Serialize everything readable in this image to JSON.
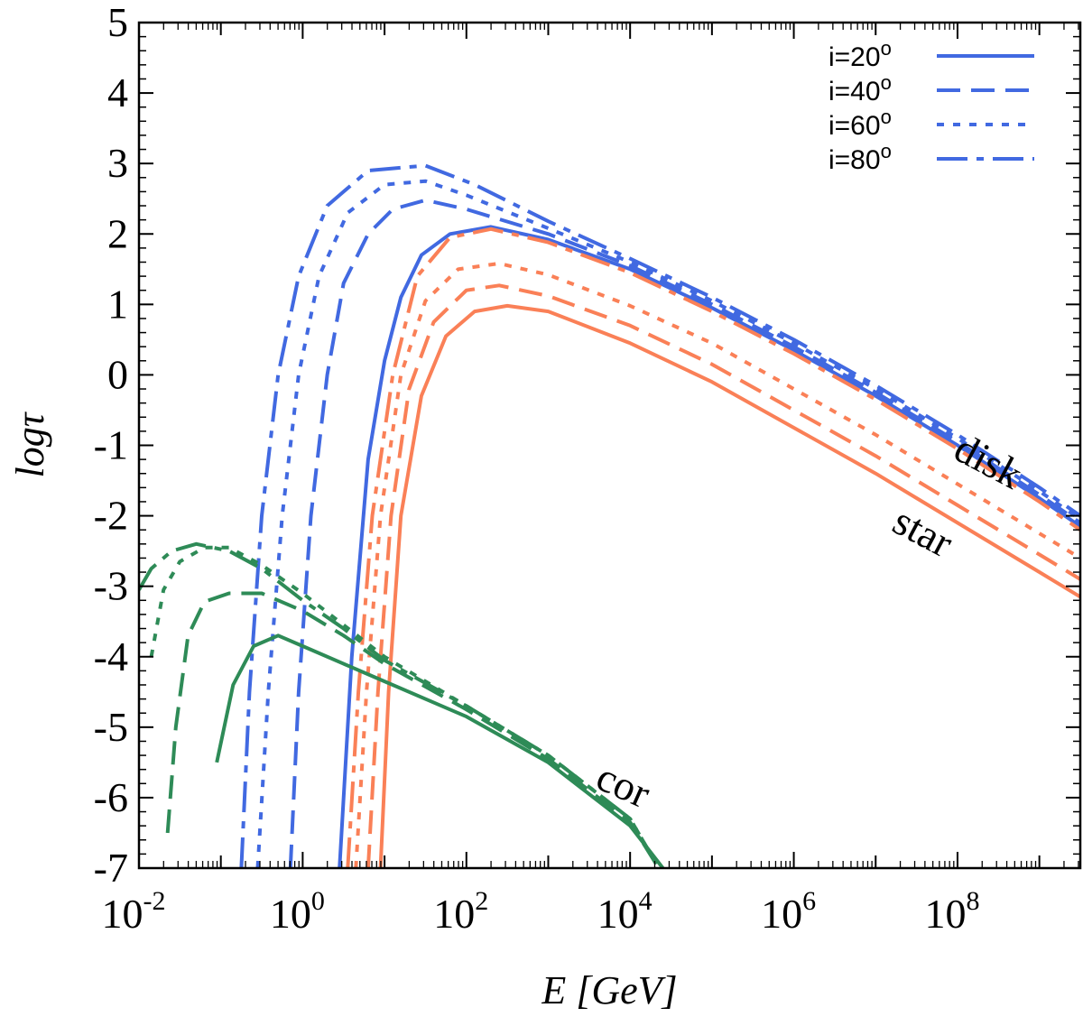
{
  "chart_data": {
    "type": "line",
    "title": "",
    "xlabel": "E [GeV]",
    "ylabel": "logτ",
    "xscale": "log10",
    "xlim_log10": [
      -2,
      9.5
    ],
    "ylim": [
      -7,
      5
    ],
    "x_ticks": [
      {
        "base": "10",
        "exp": "-2",
        "value_log10": -2
      },
      {
        "base": "10",
        "exp": "0",
        "value_log10": 0
      },
      {
        "base": "10",
        "exp": "2",
        "value_log10": 2
      },
      {
        "base": "10",
        "exp": "4",
        "value_log10": 4
      },
      {
        "base": "10",
        "exp": "6",
        "value_log10": 6
      },
      {
        "base": "10",
        "exp": "8",
        "value_log10": 8
      }
    ],
    "y_ticks": [
      "-7",
      "-6",
      "-5",
      "-4",
      "-3",
      "-2",
      "-1",
      "0",
      "1",
      "2",
      "3",
      "4",
      "5"
    ],
    "legend_position": "top-right",
    "legend": [
      {
        "label": "i=20",
        "sup": "o",
        "dash": "solid"
      },
      {
        "label": "i=40",
        "sup": "o",
        "dash": "dashed"
      },
      {
        "label": "i=60",
        "sup": "o",
        "dash": "dotted"
      },
      {
        "label": "i=80",
        "sup": "o",
        "dash": "dash-dot"
      }
    ],
    "legend_color": "#4169e1",
    "colors": {
      "disk": "#4169e1",
      "star": "#fa8057",
      "cor": "#2e8b57"
    },
    "annotations": [
      {
        "text": "disk",
        "x_log10": 8.3,
        "y": -1.4,
        "rotate": 28
      },
      {
        "text": "star",
        "x_log10": 7.5,
        "y": -2.4,
        "rotate": 28
      },
      {
        "text": "cor",
        "x_log10": 3.85,
        "y": -6.0,
        "rotate": 24
      }
    ],
    "series": [
      {
        "name": "disk i=20",
        "group": "disk",
        "dash": "solid",
        "points": [
          [
            0.45,
            -7
          ],
          [
            0.6,
            -4
          ],
          [
            0.8,
            -1.2
          ],
          [
            1.0,
            0.2
          ],
          [
            1.2,
            1.1
          ],
          [
            1.45,
            1.7
          ],
          [
            1.8,
            2.0
          ],
          [
            2.3,
            2.1
          ],
          [
            3,
            1.92
          ],
          [
            4,
            1.5
          ],
          [
            5,
            0.95
          ],
          [
            6,
            0.35
          ],
          [
            7,
            -0.3
          ],
          [
            8,
            -1
          ],
          [
            9,
            -1.75
          ],
          [
            9.5,
            -2.15
          ]
        ]
      },
      {
        "name": "disk i=40",
        "group": "disk",
        "dash": "dashed",
        "points": [
          [
            -0.15,
            -7
          ],
          [
            -0.05,
            -4.5
          ],
          [
            0.1,
            -2
          ],
          [
            0.3,
            0
          ],
          [
            0.5,
            1.3
          ],
          [
            0.8,
            2.0
          ],
          [
            1.1,
            2.35
          ],
          [
            1.5,
            2.48
          ],
          [
            2,
            2.35
          ],
          [
            3,
            2.0
          ],
          [
            4,
            1.55
          ],
          [
            5,
            1.0
          ],
          [
            6,
            0.4
          ],
          [
            7,
            -0.25
          ],
          [
            8,
            -0.95
          ],
          [
            9,
            -1.7
          ],
          [
            9.5,
            -2.1
          ]
        ]
      },
      {
        "name": "disk i=60",
        "group": "disk",
        "dash": "dotted",
        "points": [
          [
            -0.55,
            -7
          ],
          [
            -0.42,
            -4.5
          ],
          [
            -0.25,
            -2
          ],
          [
            -0.05,
            0
          ],
          [
            0.2,
            1.4
          ],
          [
            0.55,
            2.3
          ],
          [
            1,
            2.7
          ],
          [
            1.5,
            2.75
          ],
          [
            2,
            2.55
          ],
          [
            3,
            2.08
          ],
          [
            4,
            1.6
          ],
          [
            5,
            1.05
          ],
          [
            6,
            0.45
          ],
          [
            7,
            -0.2
          ],
          [
            8,
            -0.9
          ],
          [
            9,
            -1.65
          ],
          [
            9.5,
            -2.05
          ]
        ]
      },
      {
        "name": "disk i=80",
        "group": "disk",
        "dash": "dash-dot",
        "points": [
          [
            -0.75,
            -7
          ],
          [
            -0.65,
            -4.5
          ],
          [
            -0.5,
            -2
          ],
          [
            -0.3,
            0
          ],
          [
            -0.05,
            1.4
          ],
          [
            0.3,
            2.4
          ],
          [
            0.8,
            2.9
          ],
          [
            1.5,
            2.97
          ],
          [
            2.1,
            2.7
          ],
          [
            3,
            2.18
          ],
          [
            4,
            1.65
          ],
          [
            5,
            1.1
          ],
          [
            6,
            0.5
          ],
          [
            7,
            -0.15
          ],
          [
            8,
            -0.85
          ],
          [
            9,
            -1.6
          ],
          [
            9.5,
            -2.0
          ]
        ]
      },
      {
        "name": "star i=20",
        "group": "star",
        "dash": "solid",
        "points": [
          [
            0.95,
            -7
          ],
          [
            1.05,
            -4.5
          ],
          [
            1.2,
            -2
          ],
          [
            1.45,
            -0.3
          ],
          [
            1.75,
            0.55
          ],
          [
            2.1,
            0.9
          ],
          [
            2.5,
            0.98
          ],
          [
            3,
            0.9
          ],
          [
            4,
            0.45
          ],
          [
            5,
            -0.1
          ],
          [
            6,
            -0.75
          ],
          [
            7,
            -1.4
          ],
          [
            8,
            -2.1
          ],
          [
            9,
            -2.8
          ],
          [
            9.5,
            -3.15
          ]
        ]
      },
      {
        "name": "star i=40",
        "group": "star",
        "dash": "dashed",
        "points": [
          [
            0.8,
            -7
          ],
          [
            0.92,
            -4.5
          ],
          [
            1.08,
            -2
          ],
          [
            1.3,
            -0.2
          ],
          [
            1.6,
            0.75
          ],
          [
            2,
            1.2
          ],
          [
            2.4,
            1.27
          ],
          [
            3,
            1.12
          ],
          [
            4,
            0.7
          ],
          [
            5,
            0.15
          ],
          [
            6,
            -0.5
          ],
          [
            7,
            -1.15
          ],
          [
            8,
            -1.85
          ],
          [
            9,
            -2.55
          ],
          [
            9.5,
            -2.9
          ]
        ]
      },
      {
        "name": "star i=60",
        "group": "star",
        "dash": "dotted",
        "points": [
          [
            0.65,
            -7
          ],
          [
            0.78,
            -4.5
          ],
          [
            0.95,
            -2
          ],
          [
            1.2,
            0
          ],
          [
            1.5,
            1.05
          ],
          [
            1.9,
            1.5
          ],
          [
            2.4,
            1.58
          ],
          [
            3,
            1.42
          ],
          [
            4,
            0.98
          ],
          [
            5,
            0.45
          ],
          [
            6,
            -0.2
          ],
          [
            7,
            -0.85
          ],
          [
            8,
            -1.55
          ],
          [
            9,
            -2.25
          ],
          [
            9.5,
            -2.6
          ]
        ]
      },
      {
        "name": "star i=80",
        "group": "star",
        "dash": "dash-dot",
        "points": [
          [
            0.55,
            -7
          ],
          [
            0.68,
            -4.5
          ],
          [
            0.85,
            -2
          ],
          [
            1.1,
            0
          ],
          [
            1.4,
            1.4
          ],
          [
            1.8,
            1.95
          ],
          [
            2.3,
            2.07
          ],
          [
            3,
            1.88
          ],
          [
            4,
            1.45
          ],
          [
            5,
            0.9
          ],
          [
            6,
            0.3
          ],
          [
            7,
            -0.35
          ],
          [
            8,
            -1.05
          ],
          [
            9,
            -1.8
          ],
          [
            9.5,
            -2.2
          ]
        ]
      },
      {
        "name": "cor i=20",
        "group": "cor",
        "dash": "solid",
        "points": [
          [
            -1.05,
            -5.5
          ],
          [
            -0.85,
            -4.4
          ],
          [
            -0.6,
            -3.85
          ],
          [
            -0.3,
            -3.7
          ],
          [
            0,
            -3.85
          ],
          [
            0.5,
            -4.1
          ],
          [
            1,
            -4.35
          ],
          [
            2,
            -4.85
          ],
          [
            3,
            -5.5
          ],
          [
            4,
            -6.4
          ],
          [
            4.4,
            -7
          ]
        ]
      },
      {
        "name": "cor i=40",
        "group": "cor",
        "dash": "dashed",
        "points": [
          [
            -1.65,
            -6.5
          ],
          [
            -1.55,
            -5
          ],
          [
            -1.4,
            -3.7
          ],
          [
            -1.2,
            -3.22
          ],
          [
            -0.9,
            -3.1
          ],
          [
            -0.5,
            -3.1
          ],
          [
            0,
            -3.35
          ],
          [
            0.5,
            -3.7
          ],
          [
            1,
            -4.1
          ],
          [
            2,
            -4.75
          ],
          [
            3,
            -5.45
          ],
          [
            4,
            -6.35
          ],
          [
            4.35,
            -7
          ]
        ]
      },
      {
        "name": "cor i=60",
        "group": "cor",
        "dash": "dotted",
        "points": [
          [
            -1.85,
            -4.0
          ],
          [
            -1.7,
            -3.05
          ],
          [
            -1.5,
            -2.65
          ],
          [
            -1.2,
            -2.45
          ],
          [
            -0.9,
            -2.45
          ],
          [
            -0.5,
            -2.7
          ],
          [
            0,
            -3.1
          ],
          [
            0.5,
            -3.55
          ],
          [
            1,
            -4.0
          ],
          [
            2,
            -4.7
          ],
          [
            3,
            -5.4
          ],
          [
            4,
            -6.3
          ],
          [
            4.35,
            -7
          ]
        ]
      },
      {
        "name": "cor i=80",
        "group": "cor",
        "dash": "dash-dot",
        "points": [
          [
            -2,
            -3.05
          ],
          [
            -1.85,
            -2.75
          ],
          [
            -1.6,
            -2.5
          ],
          [
            -1.3,
            -2.4
          ],
          [
            -0.9,
            -2.5
          ],
          [
            -0.5,
            -2.75
          ],
          [
            0,
            -3.2
          ],
          [
            0.5,
            -3.6
          ],
          [
            1,
            -4.05
          ],
          [
            2,
            -4.7
          ],
          [
            3,
            -5.4
          ],
          [
            4,
            -6.3
          ],
          [
            4.35,
            -7
          ]
        ]
      }
    ]
  }
}
